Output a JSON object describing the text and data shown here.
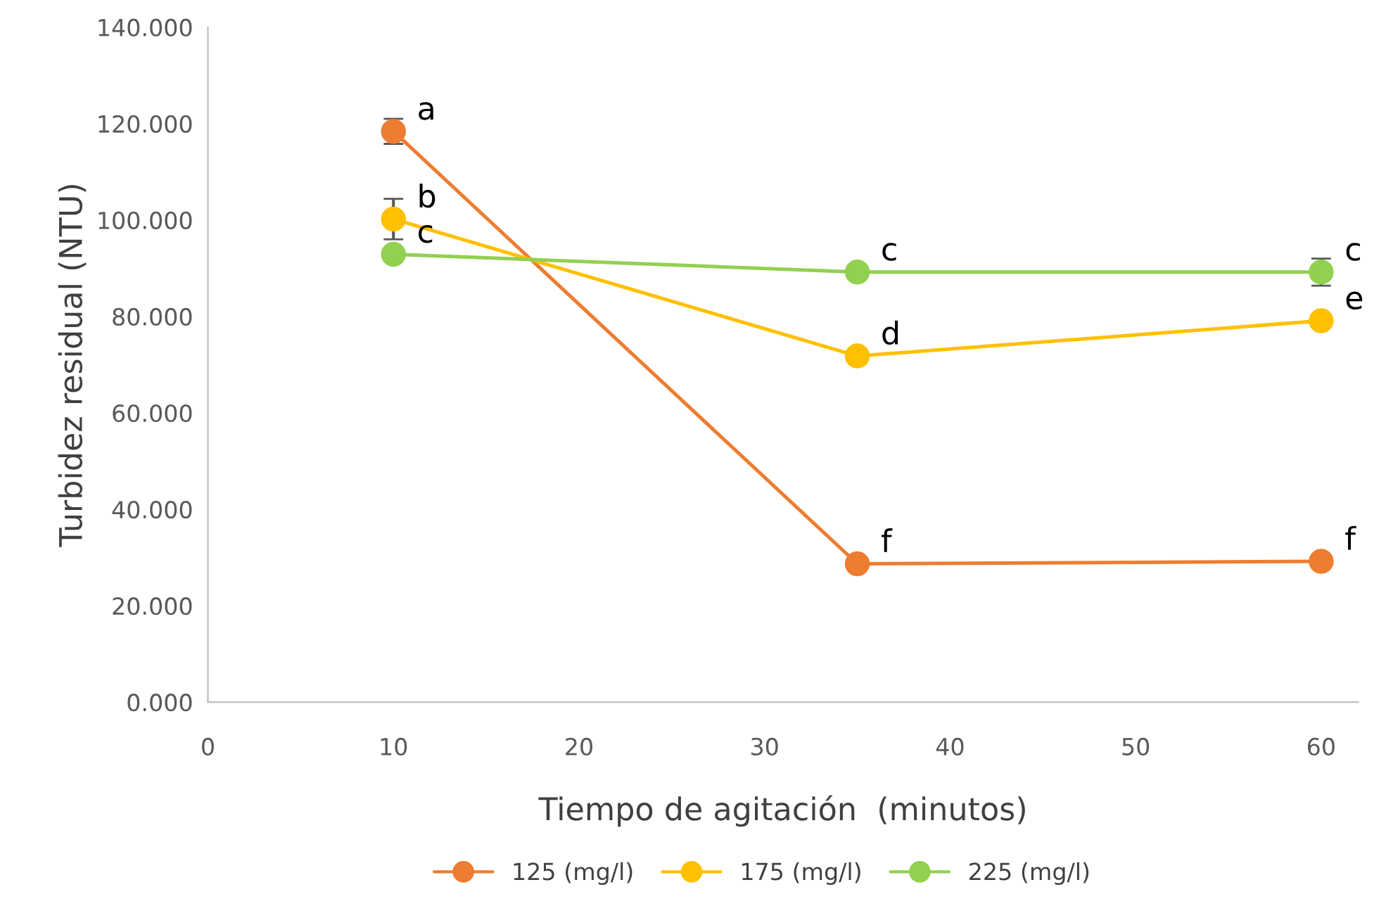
{
  "chart_data": {
    "type": "line",
    "xlabel": "Tiempo de agitación  (minutos)",
    "ylabel": "Turbidez residual (NTU)",
    "xlim": [
      0,
      62
    ],
    "xticks": [
      0,
      10,
      20,
      30,
      40,
      50,
      60
    ],
    "ylim": [
      0,
      140
    ],
    "yticks": [
      {
        "value": 0,
        "label": "0.000"
      },
      {
        "value": 20,
        "label": "20.000"
      },
      {
        "value": 40,
        "label": "40.000"
      },
      {
        "value": 60,
        "label": "60.000"
      },
      {
        "value": 80,
        "label": "80.000"
      },
      {
        "value": 100,
        "label": "100.000"
      },
      {
        "value": 120,
        "label": "120.000"
      },
      {
        "value": 140,
        "label": "140.000"
      }
    ],
    "x": [
      10,
      35,
      60
    ],
    "series": [
      {
        "name": "125 (mg/l)",
        "color": "#ed7d31",
        "values": [
          118.4,
          28.7,
          29.2
        ],
        "errors": [
          2.6,
          null,
          null
        ]
      },
      {
        "name": "175 (mg/l)",
        "color": "#ffc000",
        "values": [
          100.2,
          71.8,
          79.1
        ],
        "errors": [
          4.2,
          null,
          null
        ]
      },
      {
        "name": "225 (mg/l)",
        "color": "#92d050",
        "values": [
          92.9,
          89.2,
          89.2
        ],
        "errors": [
          null,
          null,
          2.8
        ]
      }
    ],
    "annotations": [
      {
        "text": "a",
        "x": 10,
        "y": 118.4
      },
      {
        "text": "b",
        "x": 10,
        "y": 100.2
      },
      {
        "text": "c",
        "x": 10,
        "y": 92.9
      },
      {
        "text": "f",
        "x": 35,
        "y": 28.7
      },
      {
        "text": "d",
        "x": 35,
        "y": 71.8
      },
      {
        "text": "c",
        "x": 35,
        "y": 89.2
      },
      {
        "text": "f",
        "x": 60,
        "y": 29.2
      },
      {
        "text": "e",
        "x": 60,
        "y": 79.1
      },
      {
        "text": "c",
        "x": 60,
        "y": 89.2
      }
    ],
    "marker": "circle",
    "legend": "bottom",
    "grid": false
  }
}
